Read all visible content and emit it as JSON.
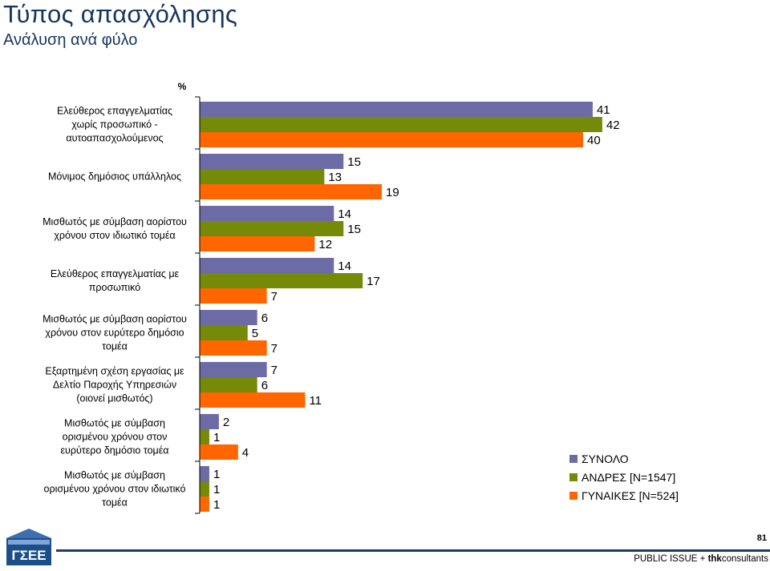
{
  "slide": {
    "title": "Τύπος απασχόλησης",
    "subtitle": "Ανάλυση ανά φύλο",
    "page_number": "81",
    "footer_left": "PUBLIC ISSUE + ",
    "footer_bold": "thk",
    "footer_right": "consultants",
    "logo_text": "ΓΣΕΕ"
  },
  "colors": {
    "synolo": "#6d6ba6",
    "andres": "#758a09",
    "gynaikes": "#ff6600",
    "title": "#17365d"
  },
  "chart_data": {
    "type": "bar",
    "orientation": "horizontal",
    "unit_label": "%",
    "categories": [
      [
        "Ελεύθερος επαγγελματίας",
        "χωρίς προσωπικό -",
        "αυτοαπασχολούμενος"
      ],
      [
        "Μόνιμος δημόσιος υπάλληλος"
      ],
      [
        "Μισθωτός με σύμβαση αορίστου",
        "χρόνου στον ιδιωτικό τομέα"
      ],
      [
        "Ελεύθερος επαγγελματίας με",
        "προσωπικό"
      ],
      [
        "Μισθωτός με σύμβαση αορίστου",
        "χρόνου στον ευρύτερο δημόσιο",
        "τομέα"
      ],
      [
        "Εξαρτημένη σχέση εργασίας με",
        "Δελτίο Παροχής Υπηρεσιών",
        "(οιονεί μισθωτός)"
      ],
      [
        "Μισθωτός με σύμβαση",
        "ορισμένου χρόνου στον",
        "ευρύτερο δημόσιο τομέα"
      ],
      [
        "Μισθωτός με σύμβαση",
        "ορισμένου χρόνου στον ιδιωτικό",
        "τομέα"
      ]
    ],
    "series": [
      {
        "name": "ΣΥΝΟΛΟ",
        "values": [
          41,
          15,
          14,
          14,
          6,
          7,
          2,
          1
        ]
      },
      {
        "name": "ΑΝΔΡΕΣ [N=1547]",
        "values": [
          42,
          13,
          15,
          17,
          5,
          6,
          1,
          1
        ]
      },
      {
        "name": "ΓΥΝΑΙΚΕΣ [N=524]",
        "values": [
          40,
          19,
          12,
          7,
          7,
          11,
          4,
          1
        ]
      }
    ],
    "xlim": [
      0,
      50
    ],
    "legend_position": "bottom-right",
    "grid": false
  }
}
